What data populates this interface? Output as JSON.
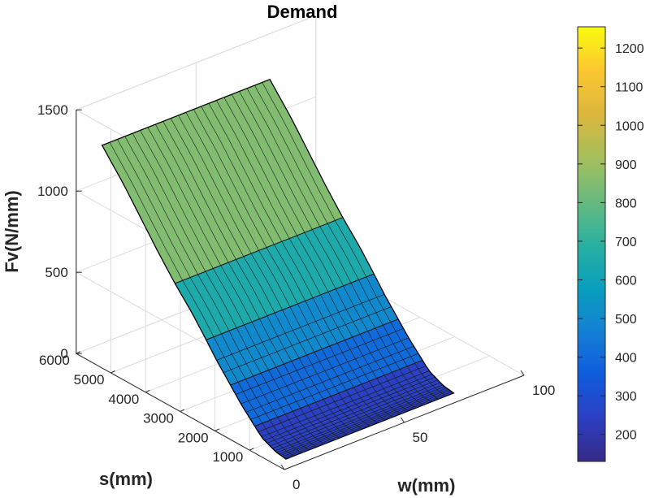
{
  "chart_data": {
    "type": "surface3d",
    "title": "Demand",
    "xlabel": "w(mm)",
    "ylabel": "s(mm)",
    "zlabel": "Fv(N/mm)",
    "xlim": [
      0,
      100
    ],
    "ylim": [
      0,
      6000
    ],
    "zlim": [
      0,
      1500
    ],
    "xticks": [
      0,
      50,
      100
    ],
    "yticks": [
      1000,
      2000,
      3000,
      4000,
      5000,
      6000
    ],
    "zticks": [
      0,
      500,
      1000,
      1500
    ],
    "grid": true,
    "colormap": "parula",
    "surface": {
      "w_range": [
        5,
        75
      ],
      "s_range": [
        300,
        5600
      ],
      "w_columns": 22,
      "color_bands": [
        {
          "s_from": 300,
          "s_to": 1200,
          "value": 250
        },
        {
          "s_from": 1200,
          "s_to": 1900,
          "value": 400
        },
        {
          "s_from": 1900,
          "s_to": 2600,
          "value": 500
        },
        {
          "s_from": 2600,
          "s_to": 3500,
          "value": 650
        },
        {
          "s_from": 3500,
          "s_to": 5600,
          "value": 850
        }
      ],
      "z_profile": [
        {
          "s": 300,
          "z": 0
        },
        {
          "s": 600,
          "z": 10
        },
        {
          "s": 1000,
          "z": 50
        },
        {
          "s": 1200,
          "z": 95
        },
        {
          "s": 1600,
          "z": 185
        },
        {
          "s": 1900,
          "z": 265
        },
        {
          "s": 2300,
          "z": 370
        },
        {
          "s": 2600,
          "z": 460
        },
        {
          "s": 3000,
          "z": 575
        },
        {
          "s": 3500,
          "z": 700
        },
        {
          "s": 4000,
          "z": 840
        },
        {
          "s": 4500,
          "z": 990
        },
        {
          "s": 5000,
          "z": 1140
        },
        {
          "s": 5600,
          "z": 1300
        }
      ]
    },
    "colorbar": {
      "ticks": [
        200,
        300,
        400,
        500,
        600,
        700,
        800,
        900,
        1000,
        1100,
        1200
      ],
      "range": [
        130,
        1255
      ],
      "colors": [
        "#352a87",
        "#2c3fc2",
        "#0f5cdd",
        "#1480d4",
        "#099fbd",
        "#2ab19f",
        "#69ba7e",
        "#a7bf5c",
        "#dcb73c",
        "#fcc731",
        "#f9fb0e"
      ]
    }
  }
}
